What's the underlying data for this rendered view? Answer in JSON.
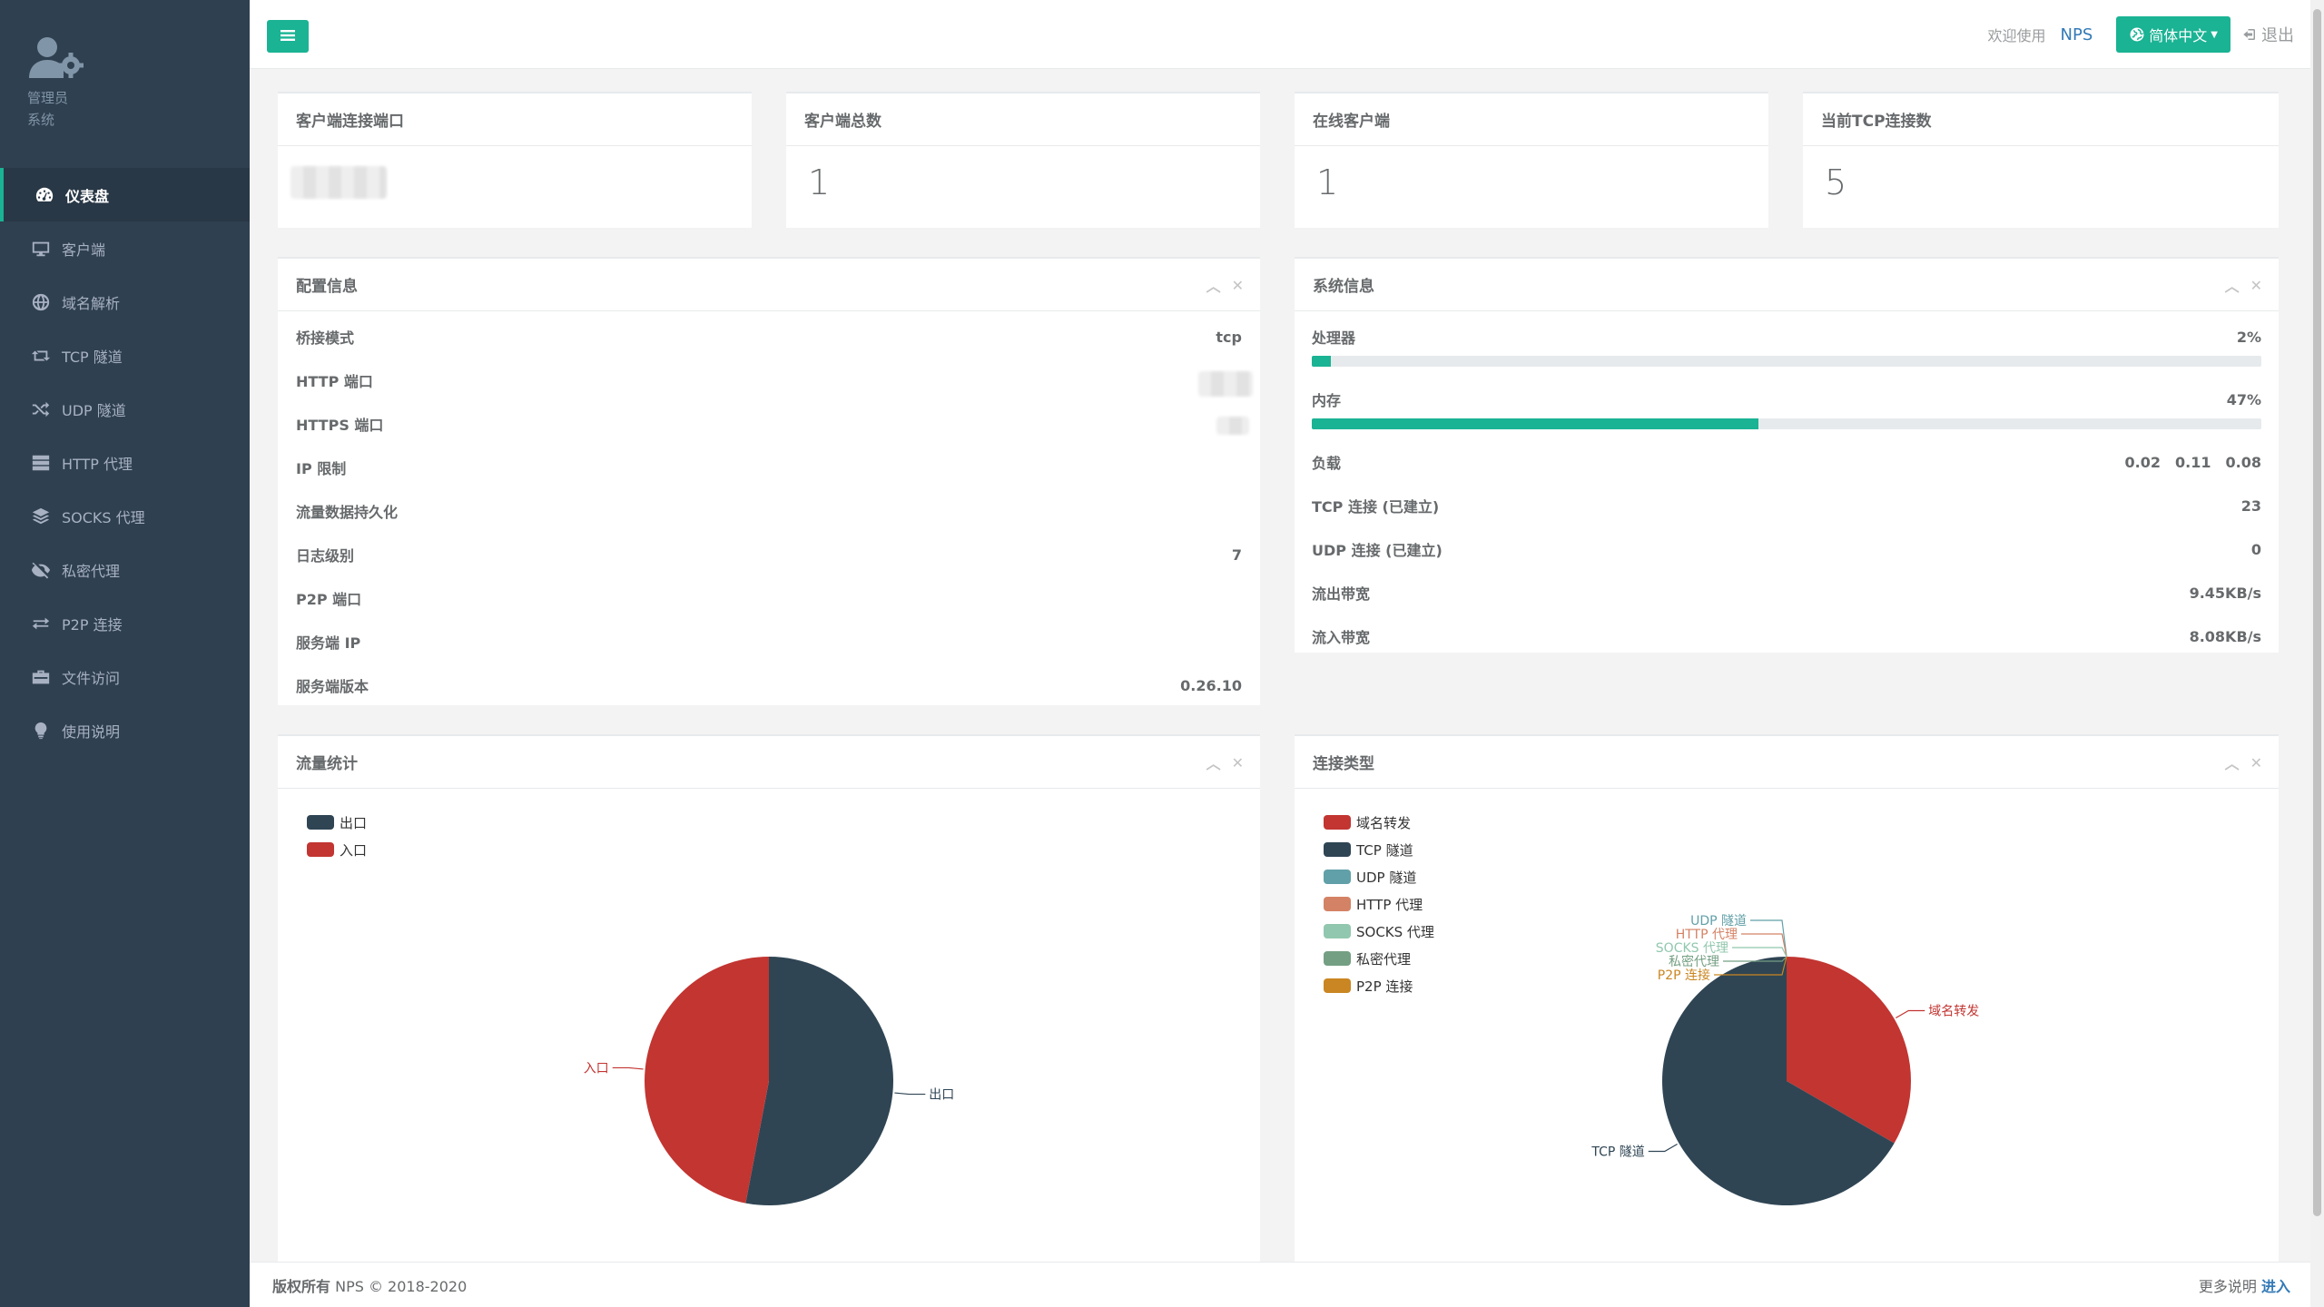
{
  "sidebar": {
    "profile": {
      "name": "管理员",
      "role": "系统"
    },
    "items": [
      {
        "label": "仪表盘",
        "icon": "dashboard-icon",
        "active": true
      },
      {
        "label": "客户端",
        "icon": "desktop-icon"
      },
      {
        "label": "域名解析",
        "icon": "globe-icon"
      },
      {
        "label": "TCP 隧道",
        "icon": "retweet-icon"
      },
      {
        "label": "UDP 隧道",
        "icon": "random-icon"
      },
      {
        "label": "HTTP 代理",
        "icon": "server-icon"
      },
      {
        "label": "SOCKS 代理",
        "icon": "layers-icon"
      },
      {
        "label": "私密代理",
        "icon": "eye-slash-icon"
      },
      {
        "label": "P2P 连接",
        "icon": "exchange-icon"
      },
      {
        "label": "文件访问",
        "icon": "briefcase-icon"
      },
      {
        "label": "使用说明",
        "icon": "lightbulb-icon"
      }
    ]
  },
  "topbar": {
    "welcome": "欢迎使用",
    "brand": "NPS",
    "language": "简体中文",
    "logout": "退出"
  },
  "stats": [
    {
      "title": "客户端连接端口",
      "value": ""
    },
    {
      "title": "客户端总数",
      "value": "1"
    },
    {
      "title": "在线客户端",
      "value": "1"
    },
    {
      "title": "当前TCP连接数",
      "value": "5"
    }
  ],
  "config": {
    "title": "配置信息",
    "rows": [
      {
        "label": "桥接模式",
        "value": "tcp"
      },
      {
        "label": "HTTP 端口",
        "value": ""
      },
      {
        "label": "HTTPS 端口",
        "value": ""
      },
      {
        "label": "IP 限制",
        "value": ""
      },
      {
        "label": "流量数据持久化",
        "value": ""
      },
      {
        "label": "日志级别",
        "value": "7"
      },
      {
        "label": "P2P 端口",
        "value": ""
      },
      {
        "label": "服务端 IP",
        "value": ""
      },
      {
        "label": "服务端版本",
        "value": "0.26.10"
      }
    ]
  },
  "system": {
    "title": "系统信息",
    "cpu": {
      "label": "处理器",
      "value": "2%",
      "percent": 2
    },
    "mem": {
      "label": "内存",
      "value": "47%",
      "percent": 47
    },
    "load": {
      "label": "负载",
      "values": [
        "0.02",
        "0.11",
        "0.08"
      ]
    },
    "rows": [
      {
        "label": "TCP 连接 (已建立)",
        "value": "23"
      },
      {
        "label": "UDP 连接 (已建立)",
        "value": "0"
      },
      {
        "label": "流出带宽",
        "value": "9.45KB/s"
      },
      {
        "label": "流入带宽",
        "value": "8.08KB/s"
      }
    ]
  },
  "traffic": {
    "title": "流量统计",
    "chart_data": {
      "type": "pie",
      "categories": [
        "出口",
        "入口"
      ],
      "values": [
        53,
        47
      ],
      "colors": [
        "#2f4554",
        "#c23531"
      ]
    }
  },
  "conn_types": {
    "title": "连接类型",
    "chart_data": {
      "type": "pie",
      "categories": [
        "域名转发",
        "TCP 隧道",
        "UDP 隧道",
        "HTTP 代理",
        "SOCKS 代理",
        "私密代理",
        "P2P 连接"
      ],
      "values": [
        1,
        2,
        0,
        0,
        0,
        0,
        0
      ],
      "colors": [
        "#c23531",
        "#2f4554",
        "#61a0a8",
        "#d48265",
        "#91c7ae",
        "#749f83",
        "#ca8622"
      ]
    }
  },
  "footer": {
    "copyright_label": "版权所有",
    "copyright_text": "NPS © 2018-2020",
    "more_label": "更多说明",
    "more_link": "进入"
  }
}
